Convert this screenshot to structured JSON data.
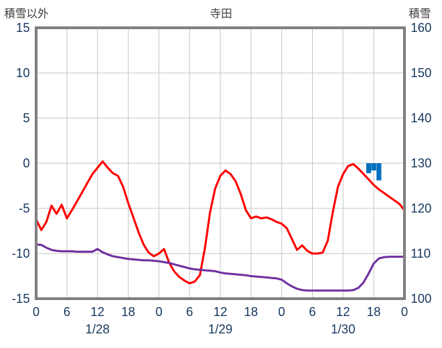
{
  "colors": {
    "red_line": "#ff0000",
    "purple_line": "#7030a0",
    "blue_bar": "#0070c0",
    "axis_text": "#17375e",
    "header_text": "#3d3d3d",
    "grid_line": "#c6c6c6",
    "plot_border": "#808080",
    "background": "#ffffff"
  },
  "chart_data": {
    "type": "line",
    "title": "寺田",
    "grid": true,
    "legend": false,
    "left_axis": {
      "label": "積雪以外",
      "min": -15,
      "max": 15,
      "tick_step": 5,
      "ticks": [
        15,
        10,
        5,
        0,
        -5,
        -10,
        -15
      ]
    },
    "right_axis": {
      "label": "積雪",
      "min": 100,
      "max": 160,
      "tick_step": 10,
      "ticks": [
        160,
        150,
        140,
        130,
        120,
        110,
        100
      ]
    },
    "x_axis": {
      "hours_total": 72,
      "tick_interval_hours": 6,
      "tick_labels": [
        "0",
        "6",
        "12",
        "18",
        "0",
        "6",
        "12",
        "18",
        "0",
        "6",
        "12",
        "18",
        "0"
      ],
      "date_labels": [
        "1/28",
        "1/29",
        "1/30"
      ]
    },
    "series": [
      {
        "id": "red-line",
        "axis": "left",
        "color": "#ff0000",
        "values_by_hour": [
          -6.2,
          -7.4,
          -6.5,
          -4.7,
          -5.6,
          -4.6,
          -6.1,
          -5.2,
          -4.2,
          -3.2,
          -2.2,
          -1.2,
          -0.5,
          0.2,
          -0.5,
          -1.1,
          -1.4,
          -2.6,
          -4.4,
          -6.0,
          -7.6,
          -9.0,
          -9.9,
          -10.3,
          -10.0,
          -9.5,
          -11.0,
          -12.0,
          -12.6,
          -13.0,
          -13.3,
          -13.1,
          -12.4,
          -9.4,
          -5.4,
          -2.8,
          -1.4,
          -0.8,
          -1.2,
          -2.0,
          -3.4,
          -5.2,
          -6.1,
          -5.9,
          -6.1,
          -6.0,
          -6.2,
          -6.5,
          -6.7,
          -7.2,
          -8.4,
          -9.6,
          -9.1,
          -9.7,
          -10.0,
          -10.0,
          -9.9,
          -8.6,
          -5.4,
          -2.6,
          -1.2,
          -0.3,
          -0.1,
          -0.6,
          -1.2,
          -1.8,
          -2.4,
          -2.9,
          -3.3,
          -3.7,
          -4.1,
          -4.5,
          -5.2
        ]
      },
      {
        "id": "purple-line",
        "axis": "right",
        "color": "#7030a0",
        "values_by_hour": [
          112.0,
          111.9,
          111.3,
          110.8,
          110.6,
          110.5,
          110.5,
          110.5,
          110.4,
          110.4,
          110.4,
          110.4,
          111.0,
          110.3,
          109.8,
          109.4,
          109.2,
          109.0,
          108.8,
          108.7,
          108.6,
          108.5,
          108.5,
          108.4,
          108.3,
          108.1,
          107.9,
          107.6,
          107.3,
          107.0,
          106.7,
          106.5,
          106.4,
          106.3,
          106.2,
          106.1,
          105.8,
          105.6,
          105.5,
          105.4,
          105.3,
          105.2,
          105.0,
          104.9,
          104.8,
          104.7,
          104.6,
          104.5,
          104.2,
          103.4,
          102.7,
          102.2,
          101.9,
          101.8,
          101.8,
          101.8,
          101.8,
          101.8,
          101.8,
          101.8,
          101.8,
          101.8,
          101.9,
          102.4,
          103.6,
          105.6,
          107.8,
          108.9,
          109.2,
          109.3,
          109.3,
          109.3,
          109.3
        ]
      }
    ],
    "bars": {
      "id": "blue-bars",
      "axis": "left",
      "baseline": 0,
      "color": "#0070c0",
      "points": [
        {
          "hour": 65,
          "value": -1.1
        },
        {
          "hour": 66,
          "value": -0.8
        },
        {
          "hour": 67,
          "value": -1.9
        }
      ]
    }
  }
}
